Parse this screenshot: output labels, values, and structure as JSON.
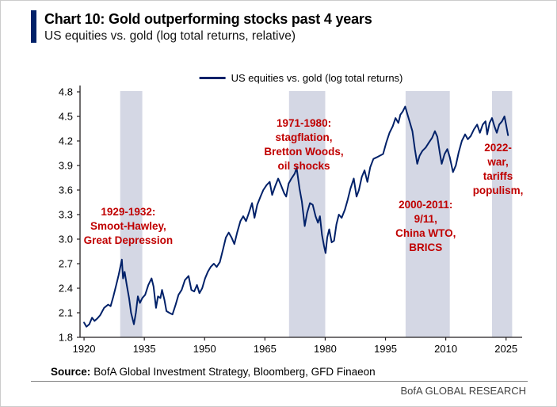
{
  "header": {
    "title": "Chart 10: Gold outperforming stocks past 4 years",
    "subtitle": "US equities vs. gold (log total returns, relative)"
  },
  "footer": {
    "source_label": "Source:",
    "source_text": "BofA Global Investment Strategy, Bloomberg, GFD Finaeon",
    "branding": "BofA GLOBAL RESEARCH"
  },
  "colors": {
    "line_navy": "#012169",
    "accent_bar": "#012169",
    "band": "#d4d7e4",
    "annotation_red": "#c00000",
    "axis": "#231f20"
  },
  "chart_data": {
    "type": "line",
    "legend": "US equities vs. gold (log total returns)",
    "legend_position": "top-center",
    "grid": false,
    "xlim": [
      1919,
      2029
    ],
    "ylim": [
      1.8,
      4.8
    ],
    "xticks": [
      "1920",
      "1935",
      "1950",
      "1965",
      "1980",
      "1995",
      "2010",
      "2025"
    ],
    "yticks": [
      "1.8",
      "2.1",
      "2.4",
      "2.7",
      "3.0",
      "3.3",
      "3.6",
      "3.9",
      "4.2",
      "4.5",
      "4.8"
    ],
    "shaded_periods": [
      {
        "from": 1929,
        "to": 1934.5,
        "label": "1929-1932"
      },
      {
        "from": 1971,
        "to": 1980,
        "label": "1971-1980"
      },
      {
        "from": 2000,
        "to": 2011,
        "label": "2000-2011"
      },
      {
        "from": 2021.5,
        "to": 2026.5,
        "label": "2022-"
      }
    ],
    "annotations": [
      {
        "x": 1931,
        "y": 3.42,
        "lines": [
          "1929-1932:",
          "Smoot-Hawley,",
          "Great Depression"
        ]
      },
      {
        "x": 1974.7,
        "y": 4.5,
        "lines": [
          "1971-1980:",
          "stagflation,",
          "Bretton Woods,",
          "oil shocks"
        ]
      },
      {
        "x": 2005,
        "y": 3.5,
        "lines": [
          "2000-2011:",
          "9/11,",
          "China WTO,",
          "BRICS"
        ]
      },
      {
        "x": 2023,
        "y": 4.2,
        "lines": [
          "2022-",
          "war,",
          "tariffs",
          "populism,"
        ]
      }
    ],
    "series": [
      {
        "name": "US equities vs. gold (log total returns)",
        "color": "#012169",
        "points": [
          [
            1920,
            1.98
          ],
          [
            1920.6,
            1.93
          ],
          [
            1921.3,
            1.96
          ],
          [
            1922,
            2.04
          ],
          [
            1922.6,
            2.0
          ],
          [
            1923.3,
            2.03
          ],
          [
            1924,
            2.07
          ],
          [
            1925,
            2.16
          ],
          [
            1926,
            2.2
          ],
          [
            1926.6,
            2.18
          ],
          [
            1927.3,
            2.3
          ],
          [
            1928,
            2.44
          ],
          [
            1928.6,
            2.56
          ],
          [
            1929.4,
            2.75
          ],
          [
            1929.7,
            2.52
          ],
          [
            1930.1,
            2.6
          ],
          [
            1930.6,
            2.45
          ],
          [
            1931.2,
            2.28
          ],
          [
            1931.7,
            2.1
          ],
          [
            1932.4,
            1.96
          ],
          [
            1932.9,
            2.1
          ],
          [
            1933.4,
            2.3
          ],
          [
            1933.9,
            2.22
          ],
          [
            1934.5,
            2.28
          ],
          [
            1935.2,
            2.32
          ],
          [
            1936,
            2.44
          ],
          [
            1936.8,
            2.52
          ],
          [
            1937.3,
            2.42
          ],
          [
            1937.9,
            2.16
          ],
          [
            1938.4,
            2.3
          ],
          [
            1939,
            2.28
          ],
          [
            1939.4,
            2.38
          ],
          [
            1940,
            2.26
          ],
          [
            1940.5,
            2.12
          ],
          [
            1941.2,
            2.1
          ],
          [
            1942,
            2.08
          ],
          [
            1942.8,
            2.2
          ],
          [
            1943.5,
            2.32
          ],
          [
            1944.3,
            2.38
          ],
          [
            1945.1,
            2.5
          ],
          [
            1946,
            2.55
          ],
          [
            1946.7,
            2.38
          ],
          [
            1947.4,
            2.36
          ],
          [
            1948.1,
            2.44
          ],
          [
            1948.7,
            2.34
          ],
          [
            1949.4,
            2.4
          ],
          [
            1950.1,
            2.52
          ],
          [
            1950.8,
            2.6
          ],
          [
            1951.5,
            2.66
          ],
          [
            1952.3,
            2.7
          ],
          [
            1953,
            2.66
          ],
          [
            1953.8,
            2.72
          ],
          [
            1954.6,
            2.88
          ],
          [
            1955.3,
            3.02
          ],
          [
            1956,
            3.08
          ],
          [
            1956.7,
            3.02
          ],
          [
            1957.4,
            2.94
          ],
          [
            1958.1,
            3.08
          ],
          [
            1958.9,
            3.22
          ],
          [
            1959.6,
            3.28
          ],
          [
            1960.3,
            3.22
          ],
          [
            1961,
            3.32
          ],
          [
            1961.8,
            3.44
          ],
          [
            1962.4,
            3.26
          ],
          [
            1963.1,
            3.42
          ],
          [
            1963.9,
            3.52
          ],
          [
            1964.6,
            3.6
          ],
          [
            1965.4,
            3.66
          ],
          [
            1966.2,
            3.7
          ],
          [
            1966.8,
            3.54
          ],
          [
            1967.5,
            3.64
          ],
          [
            1968.3,
            3.74
          ],
          [
            1969,
            3.66
          ],
          [
            1969.8,
            3.56
          ],
          [
            1970.3,
            3.52
          ],
          [
            1970.9,
            3.68
          ],
          [
            1971.6,
            3.74
          ],
          [
            1972.4,
            3.8
          ],
          [
            1972.9,
            3.87
          ],
          [
            1973.6,
            3.62
          ],
          [
            1974.2,
            3.46
          ],
          [
            1974.9,
            3.16
          ],
          [
            1975.5,
            3.32
          ],
          [
            1976.2,
            3.44
          ],
          [
            1976.9,
            3.42
          ],
          [
            1977.6,
            3.28
          ],
          [
            1978.2,
            3.2
          ],
          [
            1978.7,
            3.28
          ],
          [
            1979.2,
            3.05
          ],
          [
            1979.7,
            2.92
          ],
          [
            1980.1,
            2.83
          ],
          [
            1980.5,
            3.02
          ],
          [
            1981,
            3.12
          ],
          [
            1981.6,
            2.96
          ],
          [
            1982.2,
            2.98
          ],
          [
            1982.8,
            3.18
          ],
          [
            1983.4,
            3.3
          ],
          [
            1984.1,
            3.26
          ],
          [
            1984.9,
            3.36
          ],
          [
            1985.6,
            3.48
          ],
          [
            1986.3,
            3.62
          ],
          [
            1987.1,
            3.74
          ],
          [
            1987.8,
            3.52
          ],
          [
            1988.4,
            3.6
          ],
          [
            1989.1,
            3.76
          ],
          [
            1989.8,
            3.84
          ],
          [
            1990.5,
            3.7
          ],
          [
            1991.2,
            3.88
          ],
          [
            1992,
            3.98
          ],
          [
            1992.8,
            4.0
          ],
          [
            1993.6,
            4.02
          ],
          [
            1994.4,
            4.04
          ],
          [
            1995.2,
            4.18
          ],
          [
            1996,
            4.3
          ],
          [
            1996.8,
            4.38
          ],
          [
            1997.5,
            4.48
          ],
          [
            1998.2,
            4.42
          ],
          [
            1998.7,
            4.52
          ],
          [
            1999.3,
            4.56
          ],
          [
            1999.9,
            4.62
          ],
          [
            2000.5,
            4.52
          ],
          [
            2001.1,
            4.42
          ],
          [
            2001.7,
            4.32
          ],
          [
            2002.3,
            4.1
          ],
          [
            2002.9,
            3.92
          ],
          [
            2003.5,
            4.02
          ],
          [
            2004.2,
            4.08
          ],
          [
            2005,
            4.12
          ],
          [
            2005.8,
            4.18
          ],
          [
            2006.6,
            4.24
          ],
          [
            2007.3,
            4.32
          ],
          [
            2007.9,
            4.25
          ],
          [
            2008.5,
            4.06
          ],
          [
            2009,
            3.92
          ],
          [
            2009.7,
            4.04
          ],
          [
            2010.4,
            4.1
          ],
          [
            2011,
            4.0
          ],
          [
            2011.8,
            3.82
          ],
          [
            2012.5,
            3.9
          ],
          [
            2013.2,
            4.06
          ],
          [
            2014,
            4.2
          ],
          [
            2014.8,
            4.28
          ],
          [
            2015.5,
            4.22
          ],
          [
            2016.2,
            4.26
          ],
          [
            2017,
            4.34
          ],
          [
            2017.8,
            4.4
          ],
          [
            2018.5,
            4.3
          ],
          [
            2019.2,
            4.4
          ],
          [
            2019.9,
            4.44
          ],
          [
            2020.3,
            4.28
          ],
          [
            2020.9,
            4.42
          ],
          [
            2021.5,
            4.48
          ],
          [
            2022.1,
            4.38
          ],
          [
            2022.7,
            4.3
          ],
          [
            2023.3,
            4.4
          ],
          [
            2024,
            4.44
          ],
          [
            2024.6,
            4.5
          ],
          [
            2025,
            4.4
          ],
          [
            2025.5,
            4.27
          ]
        ]
      }
    ]
  }
}
